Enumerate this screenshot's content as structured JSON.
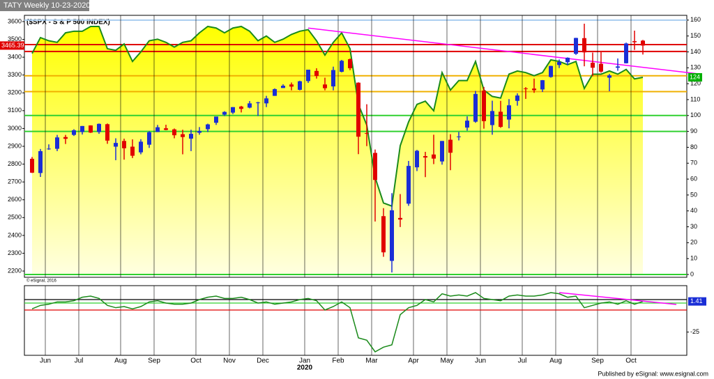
{
  "chart_data": {
    "type": "candlestick",
    "title": "TATY Weekly 10-23-2020",
    "subtitle": "($SPX - S & P 500 INDEX)",
    "categories": [
      null,
      "Jun",
      null,
      null,
      null,
      "Jul",
      null,
      null,
      null,
      null,
      "Aug",
      null,
      null,
      null,
      "Sep",
      null,
      null,
      null,
      null,
      "Oct",
      null,
      null,
      null,
      "Nov",
      null,
      null,
      null,
      "Dec",
      null,
      null,
      null,
      null,
      "Jan",
      null,
      null,
      null,
      "Feb",
      null,
      null,
      null,
      "Mar",
      null,
      null,
      null,
      null,
      "Apr",
      null,
      null,
      null,
      "May",
      null,
      null,
      null,
      "Jun",
      null,
      null,
      null,
      null,
      "Jul",
      null,
      null,
      null,
      "Aug",
      null,
      null,
      null,
      null,
      "Sep",
      null,
      null,
      null,
      "Oct",
      null,
      null
    ],
    "year_label": "2020",
    "open": [
      2830,
      2750,
      2886,
      2886,
      2952,
      2964,
      2980,
      3017,
      2980,
      3024,
      2898,
      2930,
      2898,
      2866,
      2909,
      2980,
      3001,
      2995,
      2968,
      2943,
      2976,
      2996,
      3032,
      3078,
      3089,
      3123,
      3117,
      3143,
      3141,
      3183,
      3227,
      3247,
      3217,
      3266,
      3323,
      3247,
      3236,
      3318,
      3389,
      3257,
      2974,
      2863,
      2508,
      2257,
      2498,
      2578,
      2782,
      2845,
      2854,
      2815,
      2937,
      2953,
      3005,
      3038,
      3213,
      3019,
      3094,
      3050,
      3155,
      3225,
      3224,
      3219,
      3289,
      3356,
      3372,
      3419,
      3507,
      3369,
      3363,
      3285,
      3341,
      3366,
      3490,
      3493
    ],
    "high": [
      2840,
      2885,
      2911,
      2964,
      2964,
      2996,
      3014,
      3018,
      3028,
      3028,
      2945,
      2943,
      2939,
      2940,
      2985,
      3020,
      3021,
      3000,
      2993,
      2993,
      3008,
      3027,
      3066,
      3097,
      3120,
      3127,
      3154,
      3150,
      3183,
      3225,
      3248,
      3258,
      3268,
      3329,
      3338,
      3285,
      3347,
      3385,
      3393,
      3259,
      3136,
      2882,
      2553,
      2637,
      2632,
      2818,
      2880,
      2869,
      2965,
      2930,
      2968,
      2980,
      3068,
      3211,
      3233,
      3156,
      3155,
      3165,
      3197,
      3232,
      3280,
      3272,
      3352,
      3387,
      3399,
      3509,
      3588,
      3426,
      3428,
      3306,
      3393,
      3482,
      3549,
      3497
    ],
    "low": [
      2750,
      2728,
      2880,
      2873,
      2913,
      2958,
      2966,
      2975,
      2970,
      2914,
      2822,
      2825,
      2834,
      2855,
      2891,
      2980,
      2990,
      2945,
      2855,
      2873,
      2965,
      2980,
      3020,
      3070,
      3081,
      3090,
      3113,
      3070,
      3120,
      3183,
      3227,
      3214,
      3214,
      3256,
      3280,
      3214,
      3214,
      3315,
      3327,
      2856,
      2901,
      2478,
      2280,
      2192,
      2447,
      2566,
      2761,
      2727,
      2800,
      2797,
      2766,
      2933,
      2988,
      3032,
      2999,
      2965,
      3004,
      3001,
      3128,
      3166,
      3200,
      3205,
      3285,
      3339,
      3355,
      3413,
      3349,
      3293,
      3313,
      3209,
      3324,
      3365,
      3441,
      3415
    ],
    "close": [
      2752,
      2873,
      2887,
      2950,
      2942,
      2990,
      3014,
      2977,
      3026,
      2932,
      2919,
      2889,
      2847,
      2926,
      2979,
      3007,
      2992,
      2962,
      2952,
      2970,
      2986,
      3023,
      3067,
      3093,
      3120,
      3110,
      3141,
      3146,
      3169,
      3221,
      3240,
      3235,
      3265,
      3330,
      3295,
      3226,
      3328,
      3380,
      3338,
      2954,
      2972,
      2711,
      2305,
      2541,
      2489,
      2790,
      2875,
      2837,
      2831,
      2930,
      2864,
      2955,
      3044,
      3194,
      3041,
      3098,
      3009,
      3130,
      3185,
      3224,
      3215,
      3271,
      3351,
      3373,
      3397,
      3508,
      3427,
      3341,
      3319,
      3298,
      3348,
      3477,
      3484,
      3465.39
    ],
    "up_color": "#1a2ed6",
    "down_color": "#e00000",
    "ylim": [
      2165,
      3635
    ],
    "yticks": [
      2200,
      2300,
      2400,
      2500,
      2600,
      2700,
      2800,
      2900,
      3000,
      3100,
      3200,
      3300,
      3400,
      3500,
      3600
    ],
    "y2lim": [
      -1.75,
      163
    ],
    "y2ticks": [
      0,
      10,
      20,
      30,
      40,
      50,
      60,
      70,
      80,
      90,
      100,
      110,
      120,
      130,
      140,
      150,
      160
    ],
    "indicator": {
      "color": "#1a8a1a",
      "axis": "y2",
      "values": [
        139,
        149,
        147,
        146,
        152,
        153,
        153,
        156,
        156,
        142,
        141,
        145,
        134,
        140,
        147,
        148,
        146,
        143,
        146,
        147,
        152,
        156,
        155,
        152,
        155,
        156,
        153,
        147,
        150,
        146,
        148,
        151,
        153,
        154,
        147,
        138,
        146,
        152,
        142,
        107,
        94,
        61,
        45,
        43,
        81,
        96,
        107,
        109,
        103,
        127,
        116,
        122,
        122,
        134,
        116,
        112,
        111,
        126,
        128,
        127,
        125,
        127,
        135,
        134,
        132,
        134,
        117,
        126,
        126,
        128,
        126,
        129,
        123,
        124
      ]
    },
    "reference_lines": [
      {
        "value": 160,
        "axis": "y2",
        "color": "#a8cdf0"
      },
      {
        "value": 3471,
        "axis": "y",
        "color": "#e00000"
      },
      {
        "value": 3432,
        "axis": "y",
        "color": "#e00000"
      },
      {
        "value": 125,
        "axis": "y2",
        "color": "#f0b000"
      },
      {
        "value": 115,
        "axis": "y2",
        "color": "#f0b000"
      },
      {
        "value": 100,
        "axis": "y2",
        "color": "#30d030"
      },
      {
        "value": 90,
        "axis": "y2",
        "color": "#30d030"
      },
      {
        "value": 0,
        "axis": "y2",
        "color": "#30d030"
      }
    ],
    "trendlines": [
      {
        "color": "#ff00ff",
        "axis": "y2",
        "x": [
          33,
          80
        ],
        "y": [
          155,
          126
        ]
      }
    ],
    "oscillator": {
      "color": "#1a8a1a",
      "ylim": [
        -45,
        15
      ],
      "yticks": [
        -25
      ],
      "values": [
        -5,
        -2,
        -1,
        1,
        1,
        2,
        5,
        6,
        4,
        -2,
        -4,
        -3,
        -5,
        -3,
        1,
        2,
        0,
        -1,
        -1,
        0,
        3,
        5,
        6,
        4,
        4,
        5,
        3,
        0,
        1,
        -1,
        0,
        1,
        3,
        4,
        2,
        -6,
        -3,
        1,
        -4,
        -30,
        -32,
        -42,
        -38,
        -36,
        -10,
        -4,
        -2,
        3,
        1,
        8,
        6,
        7,
        6,
        9,
        4,
        3,
        2,
        6,
        7,
        6,
        6,
        7,
        9,
        8,
        5,
        6,
        -4,
        -2,
        0,
        1,
        -1,
        2,
        -1,
        1.41
      ],
      "reference_lines": [
        {
          "value": 3,
          "color": "#000000"
        },
        {
          "value": 0,
          "color": "#30d030"
        },
        {
          "value": -6,
          "color": "#e00000"
        }
      ],
      "trendlines": [
        {
          "color": "#ff00ff",
          "x": [
            63,
            77
          ],
          "y": [
            9,
            -1.2
          ]
        }
      ]
    },
    "watermark": "© eSignal, 2016",
    "credit": "Published by eSignal: www.esignal.com"
  }
}
